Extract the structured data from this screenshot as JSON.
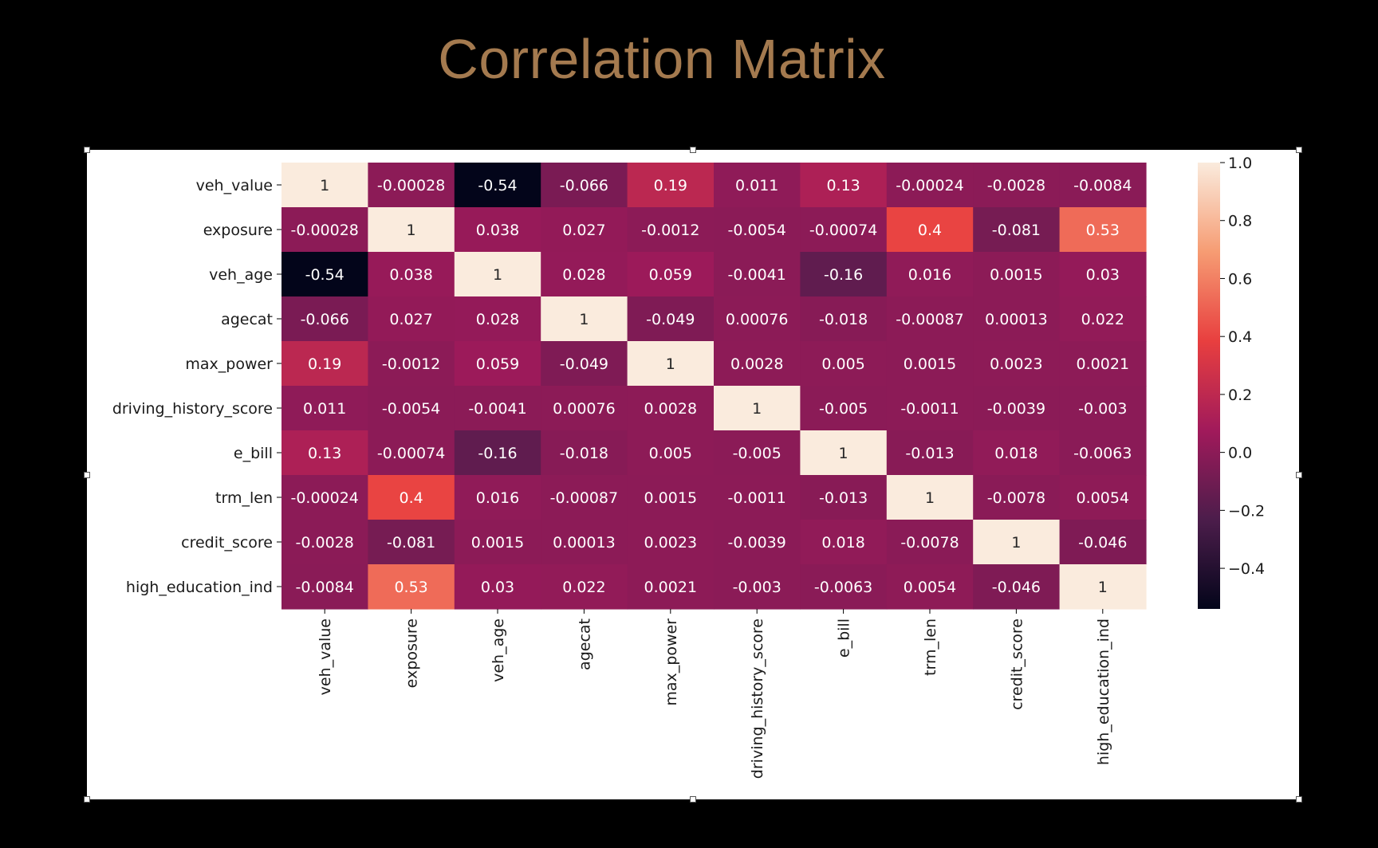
{
  "slide": {
    "title": "Correlation Matrix"
  },
  "chart_data": {
    "type": "heatmap",
    "title": "",
    "rows": [
      "veh_value",
      "exposure",
      "veh_age",
      "agecat",
      "max_power",
      "driving_history_score",
      "e_bill",
      "trm_len",
      "credit_score",
      "high_education_ind"
    ],
    "columns": [
      "veh_value",
      "exposure",
      "veh_age",
      "agecat",
      "max_power",
      "driving_history_score",
      "e_bill",
      "trm_len",
      "credit_score",
      "high_education_ind"
    ],
    "values": [
      [
        1,
        -0.00028,
        -0.54,
        -0.066,
        0.19,
        0.011,
        0.13,
        -0.00024,
        -0.0028,
        -0.0084
      ],
      [
        -0.00028,
        1,
        0.038,
        0.027,
        -0.0012,
        -0.0054,
        -0.00074,
        0.4,
        -0.081,
        0.53
      ],
      [
        -0.54,
        0.038,
        1,
        0.028,
        0.059,
        -0.0041,
        -0.16,
        0.016,
        0.0015,
        0.03
      ],
      [
        -0.066,
        0.027,
        0.028,
        1,
        -0.049,
        0.00076,
        -0.018,
        -0.00087,
        0.00013,
        0.022
      ],
      [
        0.19,
        -0.0012,
        0.059,
        -0.049,
        1,
        0.0028,
        0.005,
        0.0015,
        0.0023,
        0.0021
      ],
      [
        0.011,
        -0.0054,
        -0.0041,
        0.00076,
        0.0028,
        1,
        -0.005,
        -0.0011,
        -0.0039,
        -0.003
      ],
      [
        0.13,
        -0.00074,
        -0.16,
        -0.018,
        0.005,
        -0.005,
        1,
        -0.013,
        0.018,
        -0.0063
      ],
      [
        -0.00024,
        0.4,
        0.016,
        -0.00087,
        0.0015,
        -0.0011,
        -0.013,
        1,
        -0.0078,
        0.0054
      ],
      [
        -0.0028,
        -0.081,
        0.0015,
        0.00013,
        0.0023,
        -0.0039,
        0.018,
        -0.0078,
        1,
        -0.046
      ],
      [
        -0.0084,
        0.53,
        0.03,
        0.022,
        0.0021,
        -0.003,
        -0.0063,
        0.0054,
        -0.046,
        1
      ]
    ],
    "labels": [
      [
        "1",
        "-0.00028",
        "-0.54",
        "-0.066",
        "0.19",
        "0.011",
        "0.13",
        "-0.00024",
        "-0.0028",
        "-0.0084"
      ],
      [
        "-0.00028",
        "1",
        "0.038",
        "0.027",
        "-0.0012",
        "-0.0054",
        "-0.00074",
        "0.4",
        "-0.081",
        "0.53"
      ],
      [
        "-0.54",
        "0.038",
        "1",
        "0.028",
        "0.059",
        "-0.0041",
        "-0.16",
        "0.016",
        "0.0015",
        "0.03"
      ],
      [
        "-0.066",
        "0.027",
        "0.028",
        "1",
        "-0.049",
        "0.00076",
        "-0.018",
        "-0.00087",
        "0.00013",
        "0.022"
      ],
      [
        "0.19",
        "-0.0012",
        "0.059",
        "-0.049",
        "1",
        "0.0028",
        "0.005",
        "0.0015",
        "0.0023",
        "0.0021"
      ],
      [
        "0.011",
        "-0.0054",
        "-0.0041",
        "0.00076",
        "0.0028",
        "1",
        "-0.005",
        "-0.0011",
        "-0.0039",
        "-0.003"
      ],
      [
        "0.13",
        "-0.00074",
        "-0.16",
        "-0.018",
        "0.005",
        "-0.005",
        "1",
        "-0.013",
        "0.018",
        "-0.0063"
      ],
      [
        "-0.00024",
        "0.4",
        "0.016",
        "-0.00087",
        "0.0015",
        "-0.0011",
        "-0.013",
        "1",
        "-0.0078",
        "0.0054"
      ],
      [
        "-0.0028",
        "-0.081",
        "0.0015",
        "0.00013",
        "0.0023",
        "-0.0039",
        "0.018",
        "-0.0078",
        "1",
        "-0.046"
      ],
      [
        "-0.0084",
        "0.53",
        "0.03",
        "0.022",
        "0.0021",
        "-0.003",
        "-0.0063",
        "0.0054",
        "-0.046",
        "1"
      ]
    ],
    "colorbar": {
      "min": -0.54,
      "max": 1.0,
      "ticks": [
        1.0,
        0.8,
        0.6,
        0.4,
        0.2,
        0.0,
        -0.2,
        -0.4
      ],
      "tick_labels": [
        "1.0",
        "0.8",
        "0.6",
        "0.4",
        "0.2",
        "0.0",
        "−0.2",
        "−0.4"
      ],
      "colormap": "rocket",
      "stops": [
        "#03051a",
        "#4c1d4b",
        "#a11a5b",
        "#e83f3f",
        "#f69c73",
        "#faebdd"
      ]
    }
  },
  "colors": {
    "background": "#000000",
    "title": "#a47a4f",
    "frame": "#ffffff"
  }
}
